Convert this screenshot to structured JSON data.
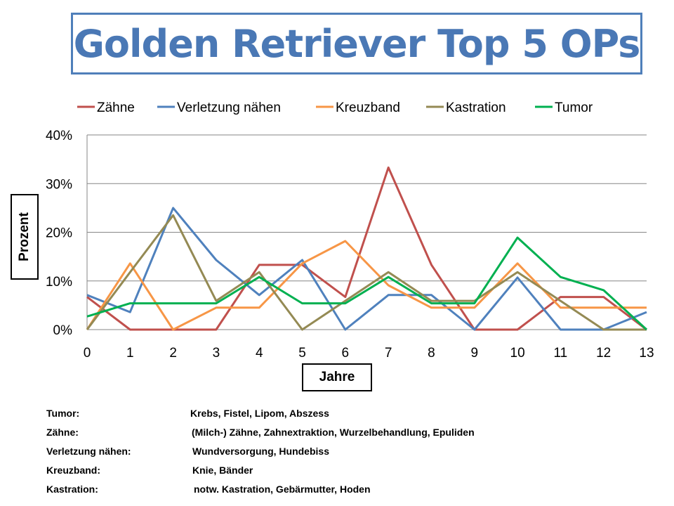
{
  "title": "Golden Retriever Top 5 OPs",
  "chart_data": {
    "type": "line",
    "title": "",
    "xlabel": "Jahre",
    "ylabel": "Prozent",
    "x": [
      0,
      1,
      2,
      3,
      4,
      5,
      6,
      7,
      8,
      9,
      10,
      11,
      12,
      13
    ],
    "ylim": [
      0,
      40
    ],
    "yticks": [
      "0%",
      "10%",
      "20%",
      "30%",
      "40%"
    ],
    "grid": true,
    "legend": "top",
    "series": [
      {
        "name": "Zähne",
        "color": "#c0504d",
        "values": [
          6.7,
          0,
          0,
          0,
          13.3,
          13.3,
          6.7,
          33.3,
          13.3,
          0,
          0,
          6.7,
          6.7,
          0
        ]
      },
      {
        "name": "Verletzung nähen",
        "color": "#4f81bd",
        "values": [
          7.1,
          3.6,
          25,
          14.3,
          7.1,
          14.3,
          0,
          7.1,
          7.1,
          0,
          10.7,
          0,
          0,
          3.6
        ]
      },
      {
        "name": "Kreuzband",
        "color": "#f79646",
        "values": [
          0,
          13.6,
          0,
          4.5,
          4.5,
          13.6,
          18.2,
          9.1,
          4.5,
          4.5,
          13.6,
          4.5,
          4.5,
          4.5
        ]
      },
      {
        "name": "Kastration",
        "color": "#948a54",
        "values": [
          0,
          11.8,
          23.5,
          5.9,
          11.8,
          0,
          5.9,
          11.8,
          5.9,
          5.9,
          11.8,
          5.9,
          0,
          0
        ]
      },
      {
        "name": "Tumor",
        "color": "#00b050",
        "values": [
          2.7,
          5.4,
          5.4,
          5.4,
          10.8,
          5.4,
          5.4,
          10.8,
          5.4,
          5.4,
          18.9,
          10.8,
          8.1,
          0
        ]
      }
    ]
  },
  "notes": [
    {
      "term": "Tumor:",
      "desc": "Krebs, Fistel, Lipom, Abszess"
    },
    {
      "term": "Zähne:",
      "desc": "(Milch-) Zähne, Zahnextraktion, Wurzelbehandlung, Epuliden"
    },
    {
      "term": "Verletzung nähen:",
      "desc": "Wundversorgung, Hundebiss"
    },
    {
      "term": "Kreuzband:",
      "desc": "Knie, Bänder"
    },
    {
      "term": "Kastration:",
      "desc": "notw. Kastration, Gebärmutter, Hoden"
    }
  ]
}
